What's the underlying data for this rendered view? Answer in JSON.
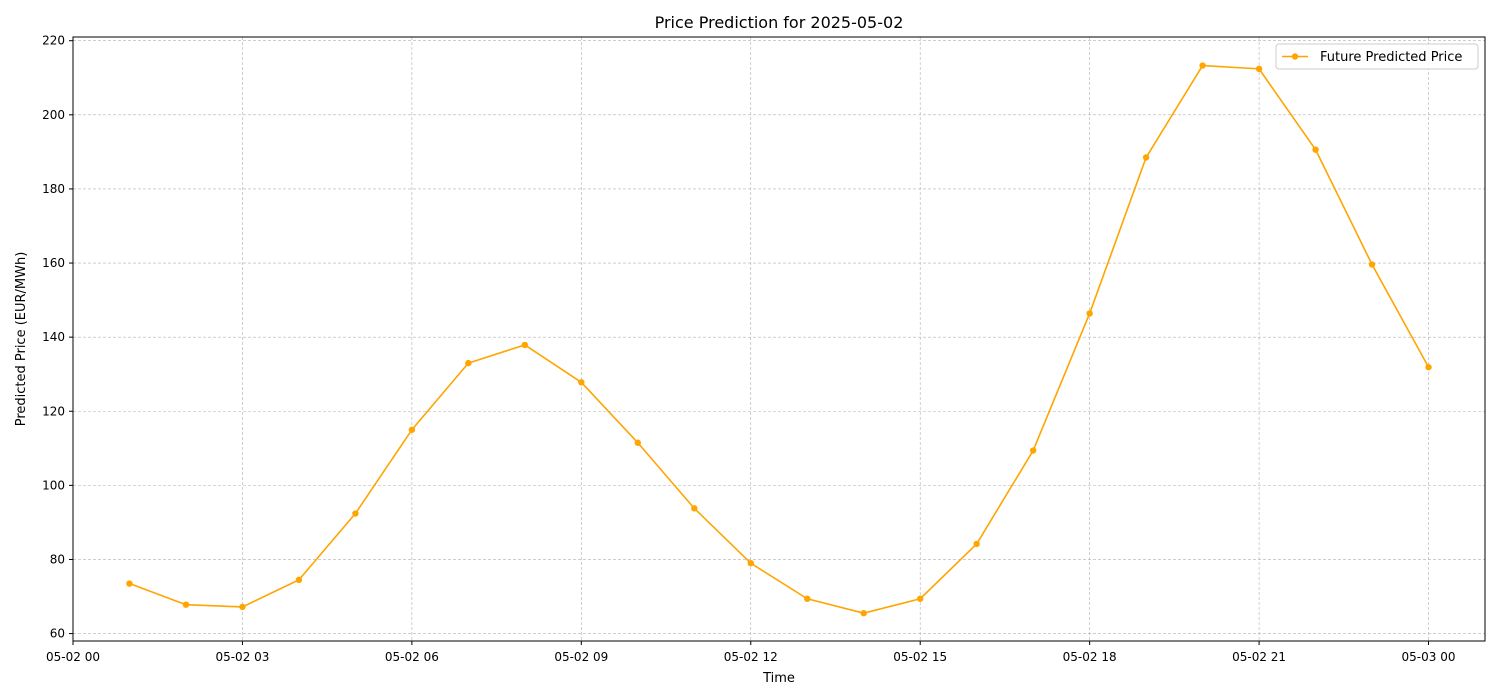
{
  "chart_data": {
    "type": "line",
    "title": "Price Prediction for 2025-05-02",
    "xlabel": "Time",
    "ylabel": "Predicted Price (EUR/MWh)",
    "x_unit": "hours from 05-02 00:00",
    "xlim": [
      0,
      25
    ],
    "ylim": [
      58,
      221
    ],
    "grid": true,
    "legend_position": "top-right",
    "line_color": "#ffa500",
    "x_ticks": [
      {
        "x": 0,
        "label": "05-02 00"
      },
      {
        "x": 3,
        "label": "05-02 03"
      },
      {
        "x": 6,
        "label": "05-02 06"
      },
      {
        "x": 9,
        "label": "05-02 09"
      },
      {
        "x": 12,
        "label": "05-02 12"
      },
      {
        "x": 15,
        "label": "05-02 15"
      },
      {
        "x": 18,
        "label": "05-02 18"
      },
      {
        "x": 21,
        "label": "05-02 21"
      },
      {
        "x": 24,
        "label": "05-03 00"
      }
    ],
    "y_ticks": [
      60,
      80,
      100,
      120,
      140,
      160,
      180,
      200,
      220
    ],
    "series": [
      {
        "name": "Future Predicted Price",
        "x": [
          1,
          2,
          3,
          4,
          5,
          6,
          7,
          8,
          9,
          10,
          11,
          12,
          13,
          14,
          15,
          16,
          17,
          18,
          19,
          20,
          21,
          22,
          23,
          24
        ],
        "values": [
          73.5,
          67.8,
          67.2,
          74.5,
          92.4,
          115.0,
          133.0,
          137.9,
          127.8,
          111.5,
          93.8,
          79.0,
          69.4,
          65.5,
          69.4,
          84.2,
          109.4,
          146.4,
          188.5,
          213.3,
          212.4,
          190.6,
          159.6,
          131.9
        ]
      }
    ]
  }
}
